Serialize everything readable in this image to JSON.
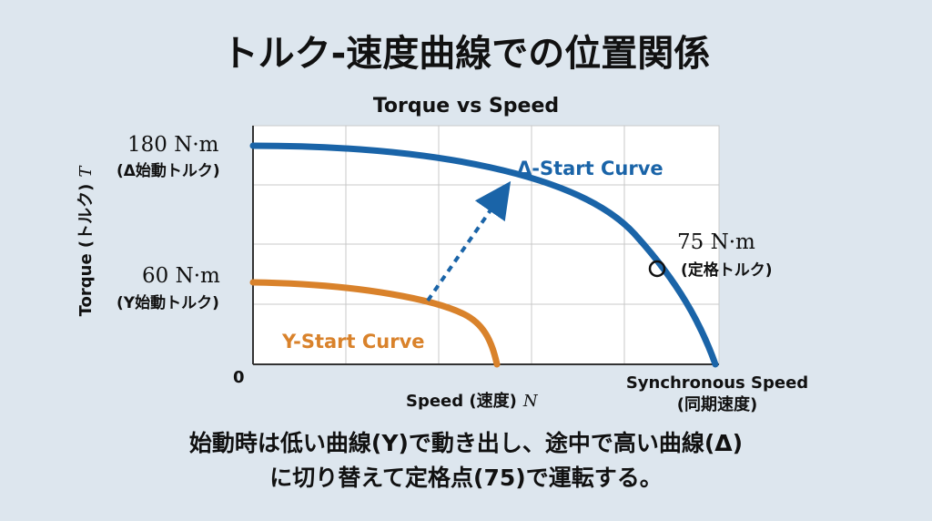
{
  "page_title": "トルク-速度曲線での位置関係",
  "caption": {
    "line1": "始動時は低い曲線(Y)で動き出し、途中で高い曲線(Δ)",
    "line2": "に切り替えて定格点(75)で運転する。"
  },
  "chart_data": {
    "type": "line",
    "title": "Torque vs Speed",
    "xlabel": "Speed (速度)",
    "xlabel_symbol": "N",
    "ylabel": "Torque (トルク)",
    "ylabel_symbol": "T",
    "origin_label": "0",
    "x_end_label": "Synchronous Speed",
    "x_end_sublabel": "(同期速度)",
    "y_labels": [
      {
        "value": 180,
        "text": "180 N·m",
        "sub": "(Δ始動トルク)"
      },
      {
        "value": 60,
        "text": "60 N·m",
        "sub": "(Y始動トルク)"
      }
    ],
    "grid": true,
    "series": [
      {
        "name": "Δ-Start Curve",
        "color": "#1a64a8"
      },
      {
        "name": "Y-Start Curve",
        "color": "#d9822b"
      }
    ],
    "rated_point": {
      "value": 75,
      "text": "75 N·m",
      "sub": "(定格トルク)"
    },
    "transition": "dashed arrow from Y-Start Curve up to Δ-Start Curve"
  }
}
